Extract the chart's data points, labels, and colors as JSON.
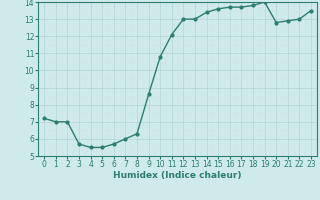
{
  "x": [
    0,
    1,
    2,
    3,
    4,
    5,
    6,
    7,
    8,
    9,
    10,
    11,
    12,
    13,
    14,
    15,
    16,
    17,
    18,
    19,
    20,
    21,
    22,
    23
  ],
  "y": [
    7.2,
    7.0,
    7.0,
    5.7,
    5.5,
    5.5,
    5.7,
    6.0,
    6.3,
    8.6,
    10.8,
    12.1,
    13.0,
    13.0,
    13.4,
    13.6,
    13.7,
    13.7,
    13.8,
    14.0,
    12.8,
    12.9,
    13.0,
    13.5
  ],
  "xlim": [
    -0.5,
    23.5
  ],
  "ylim": [
    5,
    14
  ],
  "yticks": [
    5,
    6,
    7,
    8,
    9,
    10,
    11,
    12,
    13,
    14
  ],
  "xticks": [
    0,
    1,
    2,
    3,
    4,
    5,
    6,
    7,
    8,
    9,
    10,
    11,
    12,
    13,
    14,
    15,
    16,
    17,
    18,
    19,
    20,
    21,
    22,
    23
  ],
  "xlabel": "Humidex (Indice chaleur)",
  "line_color": "#2e7d6e",
  "marker": "o",
  "marker_size": 2,
  "bg_color": "#ceeaea",
  "grid_major_color": "#b8d8d8",
  "grid_minor_color": "#cde6e6",
  "tick_fontsize": 5.5,
  "xlabel_fontsize": 6.5,
  "line_width": 1.0
}
